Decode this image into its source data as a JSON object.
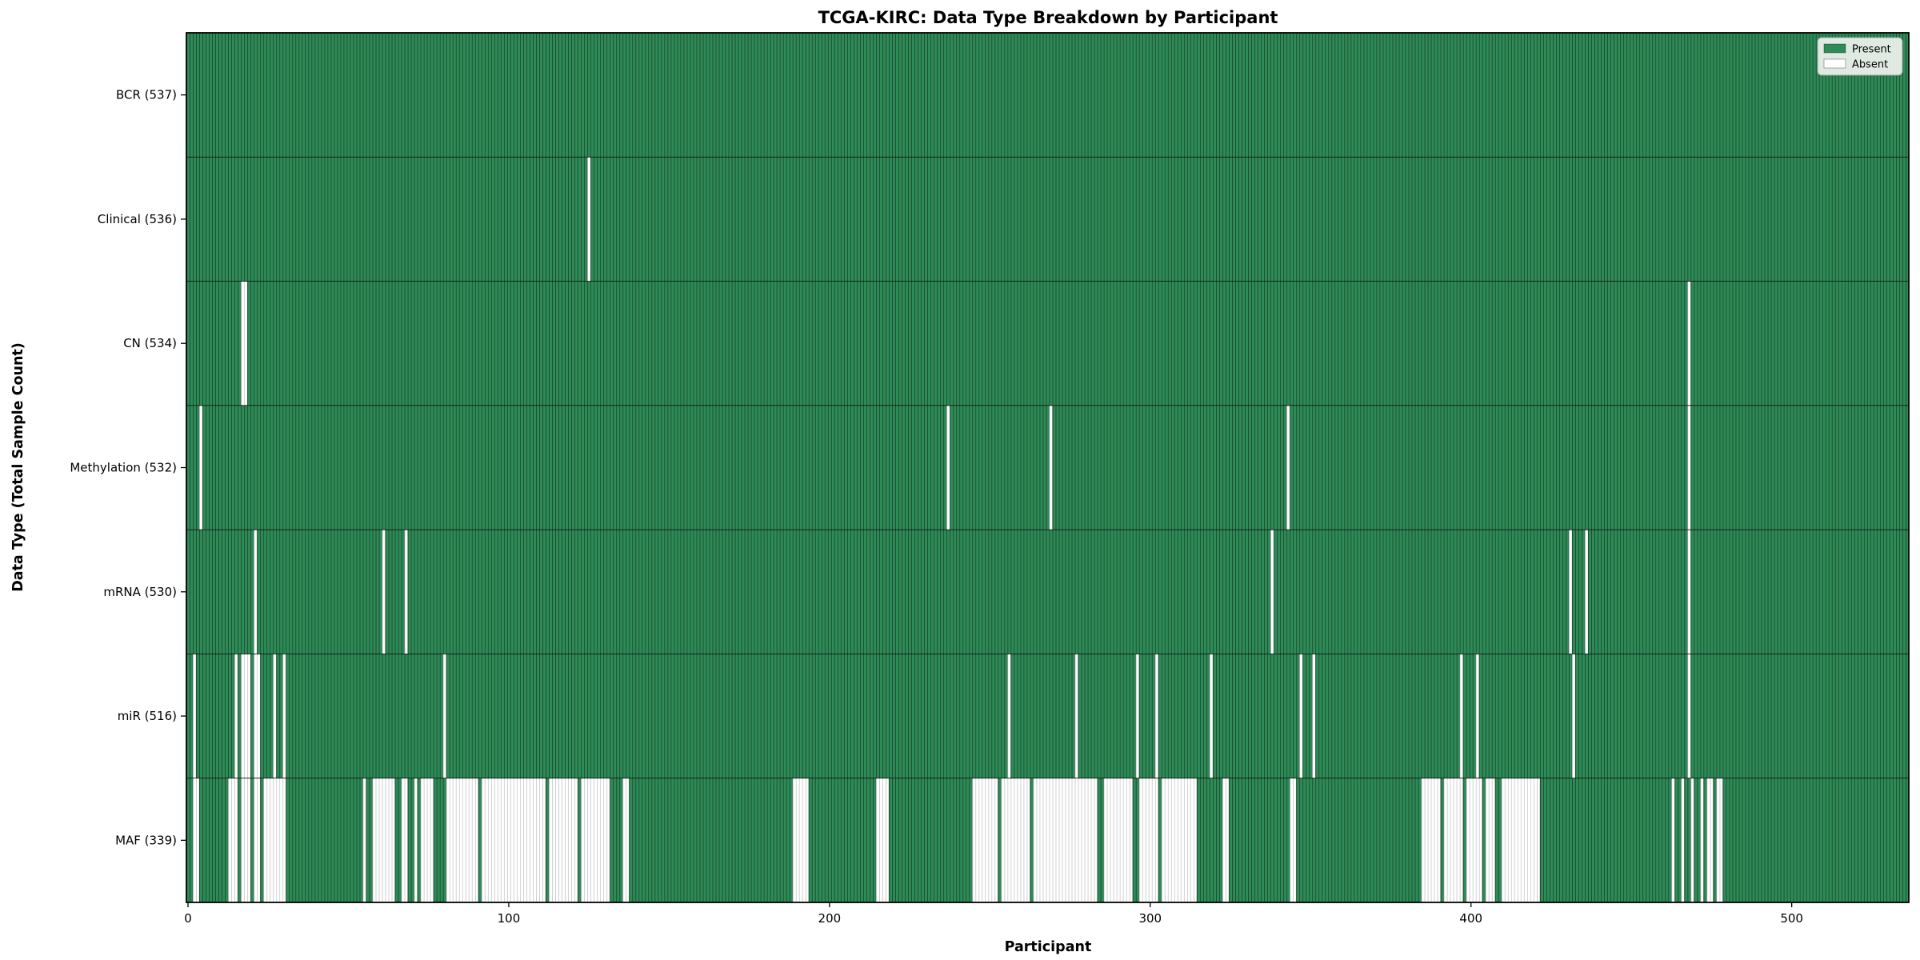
{
  "chart_data": {
    "type": "heatmap",
    "title": "TCGA-KIRC: Data Type Breakdown by Participant",
    "xlabel": "Participant",
    "ylabel": "Data Type (Total Sample Count)",
    "n_participants": 537,
    "x_ticks": [
      0,
      100,
      200,
      300,
      400,
      500
    ],
    "legend": [
      {
        "label": "Present",
        "color": "#2e8b57"
      },
      {
        "label": "Absent",
        "color": "#ffffff"
      }
    ],
    "legend_position": "upper right",
    "grid": false,
    "colors": {
      "present": "#2e8b57",
      "absent": "#ffffff",
      "bar_edge": "rgba(0,0,0,0.45)",
      "absent_edge": "rgba(0,0,0,0.22)",
      "row_separator": "#141414",
      "spine": "#000000",
      "legend_bg": "#eff3ef",
      "legend_border": "#a0a0a0"
    },
    "rows": [
      {
        "name": "BCR",
        "label": "BCR (537)",
        "total": 537,
        "absent_ranges": []
      },
      {
        "name": "Clinical",
        "label": "Clinical (536)",
        "total": 536,
        "absent_ranges": [
          [
            125,
            125
          ]
        ]
      },
      {
        "name": "CN",
        "label": "CN (534)",
        "total": 534,
        "absent_ranges": [
          [
            17,
            18
          ],
          [
            468,
            468
          ]
        ]
      },
      {
        "name": "Methylation",
        "label": "Methylation (532)",
        "total": 532,
        "absent_ranges": [
          [
            4,
            4
          ],
          [
            237,
            237
          ],
          [
            269,
            269
          ],
          [
            343,
            343
          ],
          [
            468,
            468
          ]
        ]
      },
      {
        "name": "mRNA",
        "label": "mRNA (530)",
        "total": 530,
        "absent_ranges": [
          [
            21,
            21
          ],
          [
            61,
            61
          ],
          [
            68,
            68
          ],
          [
            338,
            338
          ],
          [
            431,
            431
          ],
          [
            436,
            436
          ],
          [
            468,
            468
          ]
        ]
      },
      {
        "name": "miR",
        "label": "miR (516)",
        "total": 516,
        "absent_ranges": [
          [
            2,
            2
          ],
          [
            15,
            15
          ],
          [
            17,
            19
          ],
          [
            21,
            22
          ],
          [
            27,
            27
          ],
          [
            30,
            30
          ],
          [
            80,
            80
          ],
          [
            256,
            256
          ],
          [
            277,
            277
          ],
          [
            296,
            296
          ],
          [
            302,
            302
          ],
          [
            319,
            319
          ],
          [
            347,
            347
          ],
          [
            351,
            351
          ],
          [
            397,
            397
          ],
          [
            402,
            402
          ],
          [
            432,
            432
          ],
          [
            468,
            468
          ]
        ]
      },
      {
        "name": "MAF",
        "label": "MAF (339)",
        "total": 339,
        "absent_ranges": [
          [
            2,
            3
          ],
          [
            13,
            15
          ],
          [
            17,
            19
          ],
          [
            21,
            22
          ],
          [
            24,
            30
          ],
          [
            55,
            55
          ],
          [
            58,
            64
          ],
          [
            67,
            68
          ],
          [
            71,
            71
          ],
          [
            73,
            76
          ],
          [
            81,
            90
          ],
          [
            92,
            111
          ],
          [
            113,
            121
          ],
          [
            123,
            131
          ],
          [
            136,
            137
          ],
          [
            189,
            193
          ],
          [
            215,
            218
          ],
          [
            245,
            252
          ],
          [
            254,
            262
          ],
          [
            264,
            283
          ],
          [
            286,
            294
          ],
          [
            297,
            302
          ],
          [
            304,
            314
          ],
          [
            323,
            324
          ],
          [
            344,
            345
          ],
          [
            385,
            390
          ],
          [
            392,
            397
          ],
          [
            399,
            403
          ],
          [
            405,
            407
          ],
          [
            410,
            421
          ],
          [
            463,
            463
          ],
          [
            466,
            466
          ],
          [
            469,
            469
          ],
          [
            472,
            472
          ],
          [
            474,
            475
          ],
          [
            477,
            478
          ]
        ]
      }
    ]
  }
}
